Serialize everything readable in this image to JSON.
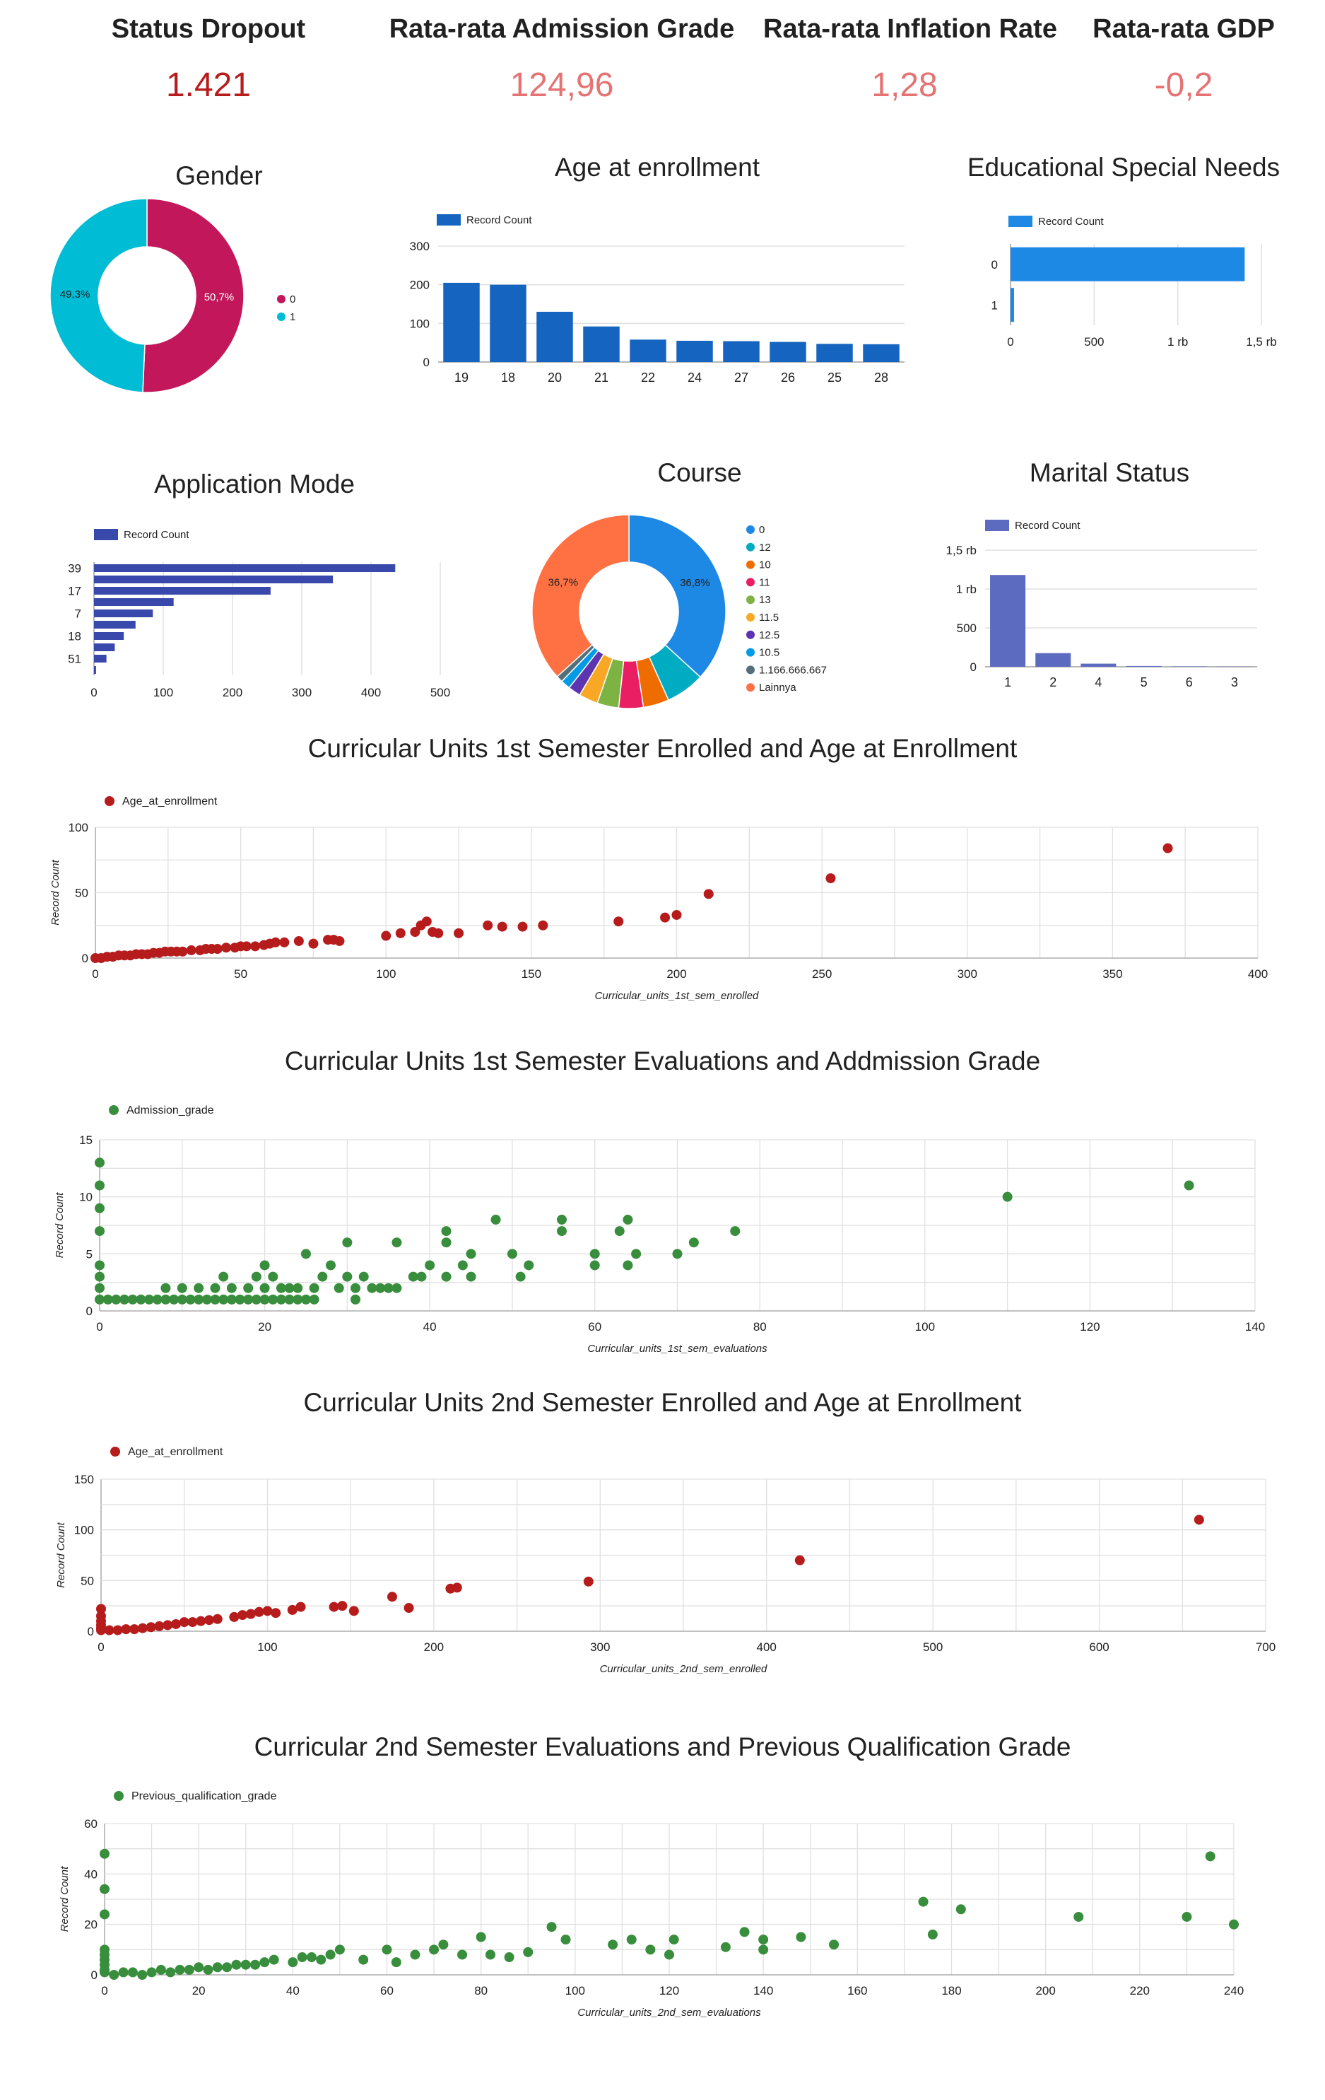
{
  "kpis": [
    {
      "label": "Status Dropout",
      "value": "1.421",
      "color": "#b71c1c"
    },
    {
      "label": "Rata-rata Admission Grade",
      "value": "124,96",
      "color": "#e57373"
    },
    {
      "label": "Rata-rata Inflation Rate",
      "value": "1,28",
      "color": "#e57373"
    },
    {
      "label": "Rata-rata GDP",
      "value": "-0,2",
      "color": "#e57373"
    }
  ],
  "chart_data": [
    {
      "id": "gender",
      "type": "pie",
      "title": "Gender",
      "slices": [
        {
          "name": "0",
          "value": 50.7,
          "label": "50,7%",
          "color": "#c2185b"
        },
        {
          "name": "1",
          "value": 49.3,
          "label": "49,3%",
          "color": "#00bcd4"
        }
      ]
    },
    {
      "id": "age",
      "type": "bar",
      "title": "Age at enrollment",
      "legend": "Record Count",
      "categories": [
        "19",
        "18",
        "20",
        "21",
        "22",
        "24",
        "27",
        "26",
        "25",
        "28"
      ],
      "values": [
        205,
        200,
        130,
        92,
        58,
        55,
        54,
        52,
        47,
        46
      ],
      "ylim": [
        0,
        300
      ],
      "yticks": [
        0,
        100,
        200,
        300
      ],
      "color": "#1565c0"
    },
    {
      "id": "special",
      "type": "bar",
      "title": "Educational Special Needs",
      "legend": "Record Count",
      "orientation": "horizontal",
      "categories": [
        "0",
        "1"
      ],
      "values": [
        1400,
        21
      ],
      "xlim": [
        0,
        1500
      ],
      "xticks": [
        "0",
        "500",
        "1 rb",
        "1,5 rb"
      ],
      "color": "#1e88e5"
    },
    {
      "id": "appmode",
      "type": "bar",
      "title": "Application Mode",
      "legend": "Record Count",
      "orientation": "horizontal",
      "tick_labels": [
        "39",
        "17",
        "7",
        "18",
        "51"
      ],
      "values": [
        435,
        345,
        255,
        115,
        85,
        60,
        43,
        30,
        18,
        3
      ],
      "xlim": [
        0,
        500
      ],
      "xticks": [
        "0",
        "100",
        "200",
        "300",
        "400",
        "500"
      ],
      "color": "#3949ab"
    },
    {
      "id": "course",
      "type": "pie",
      "title": "Course",
      "slices": [
        {
          "name": "0",
          "value": 36.8,
          "label": "36,8%",
          "color": "#1e88e5"
        },
        {
          "name": "12",
          "value": 6.5,
          "label": "",
          "color": "#00acc1"
        },
        {
          "name": "10",
          "value": 4.3,
          "label": "",
          "color": "#ef6c00"
        },
        {
          "name": "11",
          "value": 4.1,
          "label": "",
          "color": "#e91e63"
        },
        {
          "name": "13",
          "value": 3.6,
          "label": "",
          "color": "#7cb342"
        },
        {
          "name": "11.5",
          "value": 3.2,
          "label": "",
          "color": "#f9a825"
        },
        {
          "name": "12.5",
          "value": 2.1,
          "label": "",
          "color": "#5e35b1"
        },
        {
          "name": "10.5",
          "value": 1.6,
          "label": "",
          "color": "#039be5"
        },
        {
          "name": "1.166.666.667",
          "value": 1.1,
          "label": "",
          "color": "#546e7a"
        },
        {
          "name": "Lainnya",
          "value": 36.7,
          "label": "36,7%",
          "color": "#ff7043"
        }
      ]
    },
    {
      "id": "marital",
      "type": "bar",
      "title": "Marital Status",
      "legend": "Record Count",
      "categories": [
        "1",
        "2",
        "4",
        "5",
        "6",
        "3"
      ],
      "values": [
        1180,
        175,
        40,
        10,
        5,
        3
      ],
      "ylim": [
        0,
        1500
      ],
      "yticks": [
        "0",
        "500",
        "1 rb",
        "1,5 rb"
      ],
      "color": "#5c6bc0"
    },
    {
      "id": "sc1",
      "type": "scatter",
      "title": "Curricular Units 1st Semester Enrolled and Age at Enrollment",
      "series_name": "Age_at_enrollment",
      "xlabel": "Curricular_units_1st_sem_enrolled",
      "ylabel": "Record Count",
      "xlim": [
        0,
        400
      ],
      "ylim": [
        0,
        100
      ],
      "xticks": [
        0,
        50,
        100,
        150,
        200,
        250,
        300,
        350,
        400
      ],
      "yticks": [
        0,
        50,
        100
      ],
      "color": "#b71c1c",
      "points": [
        [
          0,
          0
        ],
        [
          2,
          0
        ],
        [
          4,
          1
        ],
        [
          6,
          1
        ],
        [
          8,
          2
        ],
        [
          10,
          2
        ],
        [
          12,
          2
        ],
        [
          14,
          3
        ],
        [
          16,
          3
        ],
        [
          18,
          3
        ],
        [
          20,
          4
        ],
        [
          22,
          4
        ],
        [
          24,
          5
        ],
        [
          26,
          5
        ],
        [
          28,
          5
        ],
        [
          30,
          5
        ],
        [
          33,
          6
        ],
        [
          36,
          6
        ],
        [
          38,
          7
        ],
        [
          40,
          7
        ],
        [
          42,
          7
        ],
        [
          45,
          8
        ],
        [
          48,
          8
        ],
        [
          50,
          9
        ],
        [
          52,
          9
        ],
        [
          55,
          9
        ],
        [
          58,
          10
        ],
        [
          60,
          11
        ],
        [
          62,
          12
        ],
        [
          65,
          12
        ],
        [
          70,
          13
        ],
        [
          75,
          11
        ],
        [
          80,
          14
        ],
        [
          82,
          14
        ],
        [
          84,
          13
        ],
        [
          100,
          17
        ],
        [
          105,
          19
        ],
        [
          110,
          20
        ],
        [
          112,
          25
        ],
        [
          114,
          28
        ],
        [
          116,
          20
        ],
        [
          118,
          19
        ],
        [
          125,
          19
        ],
        [
          135,
          25
        ],
        [
          140,
          24
        ],
        [
          147,
          24
        ],
        [
          154,
          25
        ],
        [
          180,
          28
        ],
        [
          196,
          31
        ],
        [
          200,
          33
        ],
        [
          211,
          49
        ],
        [
          253,
          61
        ],
        [
          369,
          84
        ]
      ]
    },
    {
      "id": "sc2",
      "type": "scatter",
      "title": "Curricular Units 1st Semester Evaluations and Addmission Grade",
      "series_name": "Admission_grade",
      "xlabel": "Curricular_units_1st_sem_evaluations",
      "ylabel": "Record Count",
      "xlim": [
        0,
        140
      ],
      "ylim": [
        0,
        15
      ],
      "xticks": [
        0,
        20,
        40,
        60,
        80,
        100,
        120,
        140
      ],
      "yticks": [
        0,
        5,
        10,
        15
      ],
      "color": "#388e3c",
      "points": [
        [
          0,
          13
        ],
        [
          0,
          11
        ],
        [
          0,
          9
        ],
        [
          0,
          7
        ],
        [
          0,
          4
        ],
        [
          0,
          3
        ],
        [
          0,
          2
        ],
        [
          0,
          1
        ],
        [
          1,
          1
        ],
        [
          2,
          1
        ],
        [
          3,
          1
        ],
        [
          4,
          1
        ],
        [
          5,
          1
        ],
        [
          6,
          1
        ],
        [
          7,
          1
        ],
        [
          8,
          1
        ],
        [
          9,
          1
        ],
        [
          10,
          1
        ],
        [
          11,
          1
        ],
        [
          12,
          1
        ],
        [
          13,
          1
        ],
        [
          14,
          1
        ],
        [
          15,
          1
        ],
        [
          16,
          1
        ],
        [
          17,
          1
        ],
        [
          18,
          1
        ],
        [
          19,
          1
        ],
        [
          20,
          1
        ],
        [
          21,
          1
        ],
        [
          22,
          1
        ],
        [
          23,
          1
        ],
        [
          24,
          1
        ],
        [
          25,
          1
        ],
        [
          26,
          1
        ],
        [
          8,
          2
        ],
        [
          10,
          2
        ],
        [
          12,
          2
        ],
        [
          14,
          2
        ],
        [
          15,
          3
        ],
        [
          16,
          2
        ],
        [
          18,
          2
        ],
        [
          19,
          3
        ],
        [
          20,
          2
        ],
        [
          20,
          4
        ],
        [
          21,
          3
        ],
        [
          22,
          2
        ],
        [
          23,
          2
        ],
        [
          24,
          2
        ],
        [
          25,
          5
        ],
        [
          26,
          2
        ],
        [
          27,
          3
        ],
        [
          28,
          4
        ],
        [
          29,
          2
        ],
        [
          30,
          3
        ],
        [
          30,
          6
        ],
        [
          31,
          1
        ],
        [
          31,
          2
        ],
        [
          32,
          3
        ],
        [
          33,
          2
        ],
        [
          34,
          2
        ],
        [
          35,
          2
        ],
        [
          36,
          6
        ],
        [
          36,
          2
        ],
        [
          38,
          3
        ],
        [
          39,
          3
        ],
        [
          40,
          4
        ],
        [
          42,
          3
        ],
        [
          42,
          6
        ],
        [
          42,
          7
        ],
        [
          44,
          4
        ],
        [
          45,
          5
        ],
        [
          45,
          3
        ],
        [
          48,
          8
        ],
        [
          50,
          5
        ],
        [
          51,
          3
        ],
        [
          52,
          4
        ],
        [
          56,
          8
        ],
        [
          56,
          7
        ],
        [
          60,
          5
        ],
        [
          60,
          4
        ],
        [
          63,
          7
        ],
        [
          64,
          8
        ],
        [
          64,
          4
        ],
        [
          65,
          5
        ],
        [
          70,
          5
        ],
        [
          72,
          6
        ],
        [
          77,
          7
        ],
        [
          110,
          10
        ],
        [
          132,
          11
        ]
      ]
    },
    {
      "id": "sc3",
      "type": "scatter",
      "title": "Curricular Units 2nd Semester Enrolled and Age at Enrollment",
      "series_name": "Age_at_enrollment",
      "xlabel": "Curricular_units_2nd_sem_enrolled",
      "ylabel": "Record Count",
      "xlim": [
        0,
        700
      ],
      "ylim": [
        0,
        150
      ],
      "xticks": [
        0,
        100,
        200,
        300,
        400,
        500,
        600,
        700
      ],
      "yticks": [
        0,
        50,
        100,
        150
      ],
      "color": "#b71c1c",
      "points": [
        [
          0,
          22
        ],
        [
          0,
          15
        ],
        [
          0,
          10
        ],
        [
          0,
          6
        ],
        [
          0,
          3
        ],
        [
          0,
          1
        ],
        [
          5,
          1
        ],
        [
          10,
          1
        ],
        [
          15,
          2
        ],
        [
          20,
          2
        ],
        [
          25,
          3
        ],
        [
          30,
          4
        ],
        [
          35,
          5
        ],
        [
          40,
          6
        ],
        [
          45,
          7
        ],
        [
          50,
          9
        ],
        [
          55,
          9
        ],
        [
          60,
          10
        ],
        [
          65,
          11
        ],
        [
          70,
          12
        ],
        [
          80,
          14
        ],
        [
          85,
          16
        ],
        [
          90,
          17
        ],
        [
          95,
          19
        ],
        [
          100,
          20
        ],
        [
          105,
          18
        ],
        [
          115,
          21
        ],
        [
          120,
          24
        ],
        [
          140,
          24
        ],
        [
          145,
          25
        ],
        [
          152,
          20
        ],
        [
          175,
          34
        ],
        [
          185,
          23
        ],
        [
          210,
          42
        ],
        [
          214,
          43
        ],
        [
          293,
          49
        ],
        [
          420,
          70
        ],
        [
          660,
          110
        ]
      ]
    },
    {
      "id": "sc4",
      "type": "scatter",
      "title": "Curricular 2nd Semester Evaluations and Previous Qualification Grade",
      "series_name": "Previous_qualification_grade",
      "xlabel": "Curricular_units_2nd_sem_evaluations",
      "ylabel": "Record Count",
      "xlim": [
        0,
        240
      ],
      "ylim": [
        0,
        60
      ],
      "xticks": [
        0,
        20,
        40,
        60,
        80,
        100,
        120,
        140,
        160,
        180,
        200,
        220,
        240
      ],
      "yticks": [
        0,
        20,
        40,
        60
      ],
      "color": "#388e3c",
      "points": [
        [
          0,
          48
        ],
        [
          0,
          34
        ],
        [
          0,
          24
        ],
        [
          0,
          10
        ],
        [
          0,
          8
        ],
        [
          0,
          6
        ],
        [
          0,
          4
        ],
        [
          0,
          2
        ],
        [
          0,
          1
        ],
        [
          2,
          0
        ],
        [
          4,
          1
        ],
        [
          6,
          1
        ],
        [
          8,
          0
        ],
        [
          10,
          1
        ],
        [
          12,
          2
        ],
        [
          14,
          1
        ],
        [
          16,
          2
        ],
        [
          18,
          2
        ],
        [
          20,
          3
        ],
        [
          22,
          2
        ],
        [
          24,
          3
        ],
        [
          26,
          3
        ],
        [
          28,
          4
        ],
        [
          30,
          4
        ],
        [
          32,
          4
        ],
        [
          34,
          5
        ],
        [
          36,
          6
        ],
        [
          40,
          5
        ],
        [
          42,
          7
        ],
        [
          44,
          7
        ],
        [
          46,
          6
        ],
        [
          48,
          8
        ],
        [
          50,
          10
        ],
        [
          55,
          6
        ],
        [
          60,
          10
        ],
        [
          62,
          5
        ],
        [
          66,
          8
        ],
        [
          70,
          10
        ],
        [
          72,
          12
        ],
        [
          76,
          8
        ],
        [
          80,
          15
        ],
        [
          82,
          8
        ],
        [
          86,
          7
        ],
        [
          90,
          9
        ],
        [
          95,
          19
        ],
        [
          98,
          14
        ],
        [
          108,
          12
        ],
        [
          112,
          14
        ],
        [
          116,
          10
        ],
        [
          120,
          8
        ],
        [
          121,
          14
        ],
        [
          132,
          11
        ],
        [
          136,
          17
        ],
        [
          140,
          10
        ],
        [
          140,
          14
        ],
        [
          148,
          15
        ],
        [
          155,
          12
        ],
        [
          174,
          29
        ],
        [
          176,
          16
        ],
        [
          182,
          26
        ],
        [
          207,
          23
        ],
        [
          230,
          23
        ],
        [
          235,
          47
        ],
        [
          240,
          20
        ]
      ]
    }
  ]
}
